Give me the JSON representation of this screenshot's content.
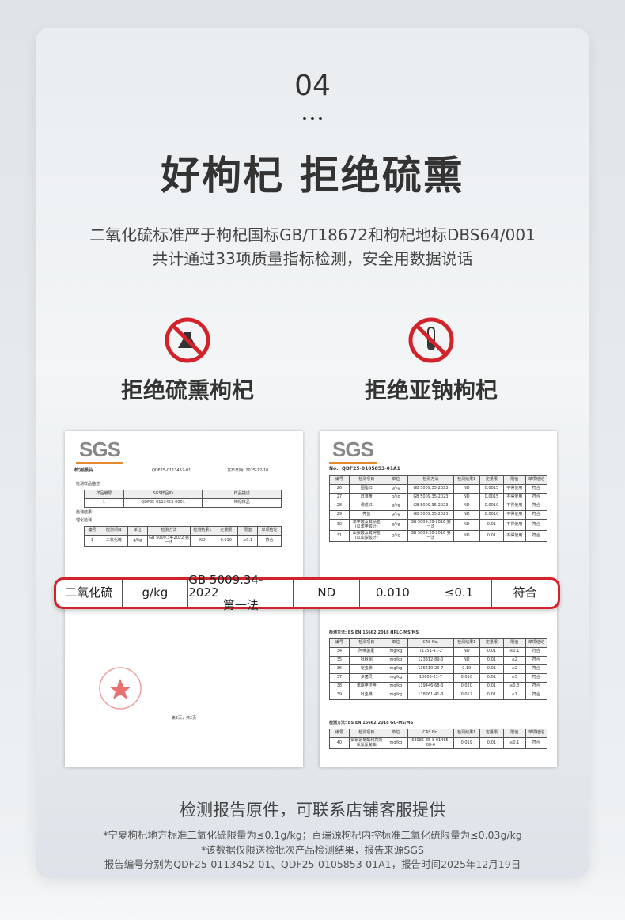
{
  "header": {
    "number": "04",
    "title": "好枸杞 拒绝硫熏",
    "subtitle_lines": [
      "二氧化硫标准严于枸杞国标GB/T18672和枸杞地标DBS64/001",
      "共计通过33项质量指标检测，安全用数据说话"
    ]
  },
  "features": [
    {
      "label": "拒绝硫熏枸杞"
    },
    {
      "label": "拒绝亚钠枸杞"
    }
  ],
  "report_left": {
    "logo": "SGS",
    "title": "检测报告",
    "number": "QDF25-0113452-01",
    "date": "发布日期: 2025-12-10",
    "sample_heading": "检测样品描述:",
    "sample_table": {
      "header": [
        "样品编号",
        "SGS样品ID",
        "样品描述"
      ],
      "rows": [
        [
          "1",
          "QDF25-0113452-0001",
          "枸杞样品"
        ]
      ]
    },
    "result_heading": "检测结果:",
    "section": "理化检测",
    "result_table": {
      "header": [
        "编号",
        "检测项目",
        "单位",
        "检测方法",
        "检测结果1",
        "定量限",
        "限值",
        "单项结论"
      ],
      "rows": [
        [
          "1",
          "二氧化硫",
          "g/kg",
          "GB 5009.34-2022 第一法",
          "ND",
          "0.010",
          "≤0.1",
          "符合"
        ]
      ]
    },
    "page": "第2页，共2页"
  },
  "report_right": {
    "logo": "SGS",
    "number": "No.: QDF25-0105853-01A1",
    "table1": {
      "header": [
        "编号",
        "检测项目",
        "单位",
        "检测方法",
        "检测结果1",
        "定量限",
        "限值",
        "单项结论"
      ],
      "rows": [
        [
          "26",
          "胭脂红",
          "g/kg",
          "GB 5009.35-2023",
          "ND",
          "0.0015",
          "不得使用",
          "符合"
        ],
        [
          "27",
          "日落黄",
          "g/kg",
          "GB 5009.35-2023",
          "ND",
          "0.0015",
          "不得使用",
          "符合"
        ],
        [
          "28",
          "诱惑红",
          "g/kg",
          "GB 5009.35-2023",
          "ND",
          "0.0010",
          "不得使用",
          "符合"
        ],
        [
          "29",
          "亮蓝",
          "g/kg",
          "GB 5009.35-2023",
          "ND",
          "0.0010",
          "不得使用",
          "符合"
        ],
        [
          "30",
          "苯甲酸及其钠盐(以苯甲酸计)",
          "g/kg",
          "GB 5009.28-2016 第一法",
          "ND",
          "0.01",
          "不得使用",
          "符合"
        ],
        [
          "31",
          "山梨酸及其钾盐(以山梨酸计)",
          "g/kg",
          "GB 5009.28-2016 第一法",
          "ND",
          "0.01",
          "不得使用",
          "符合"
        ]
      ]
    },
    "method2": "检测方法: BS EN 15662:2018 HPLC-MS/MS",
    "table2": {
      "header": [
        "编号",
        "检测项目",
        "单位",
        "CAS No.",
        "检测结果1",
        "定量限",
        "限值",
        "单项结论"
      ],
      "rows": [
        [
          "34",
          "阿维菌素",
          "mg/kg",
          "71751-41-2",
          "ND",
          "0.01",
          "≤0.1",
          "符合"
        ],
        [
          "35",
          "吡蚜酮",
          "mg/kg",
          "123312-89-0",
          "ND",
          "0.01",
          "≤2",
          "符合"
        ],
        [
          "36",
          "啶虫脒",
          "mg/kg",
          "135410-20-7",
          "0.19",
          "0.01",
          "≤2",
          "符合"
        ],
        [
          "37",
          "多菌灵",
          "mg/kg",
          "10605-21-7",
          "0.010",
          "0.01",
          "≤5",
          "符合"
        ],
        [
          "38",
          "苯醚甲环唑",
          "mg/kg",
          "119446-68-3",
          "0.020",
          "0.01",
          "≤0.3",
          "符合"
        ],
        [
          "39",
          "吡虫啉",
          "mg/kg",
          "138261-41-3",
          "0.012",
          "0.01",
          "≤1",
          "符合"
        ]
      ]
    },
    "method3": "检测方法: BS EN 15662:2018 GC-MS/MS",
    "table3": {
      "header": [
        "编号",
        "检测项目",
        "单位",
        "CAS No.",
        "检测结果1",
        "定量限",
        "限值",
        "单项结论"
      ],
      "rows": [
        [
          "40",
          "氯氟氰菊酯和高效氯氟氰菊酯",
          "mg/kg",
          "68085-85-8 91465-08-6",
          "0.019",
          "0.01",
          "≤0.1",
          "符合"
        ]
      ]
    }
  },
  "highlight_row": [
    "二氧化硫",
    "g/kg",
    [
      "GB 5009.34-2022",
      "第一法"
    ],
    "ND",
    "0.010",
    "≤0.1",
    "符合"
  ],
  "footer": {
    "caption": "检测报告原件，可联系店铺客服提供",
    "notes": [
      "*宁夏枸杞地方标准二氧化硫限量为≤0.1g/kg；百瑞源枸杞内控标准二氧化硫限量为≤0.03g/kg",
      "*该数据仅限送检批次产品检测结果，报告来源SGS",
      "报告编号分别为QDF25-0113452-01、QDF25-0105853-01A1，报告时间2025年12月19日"
    ]
  }
}
